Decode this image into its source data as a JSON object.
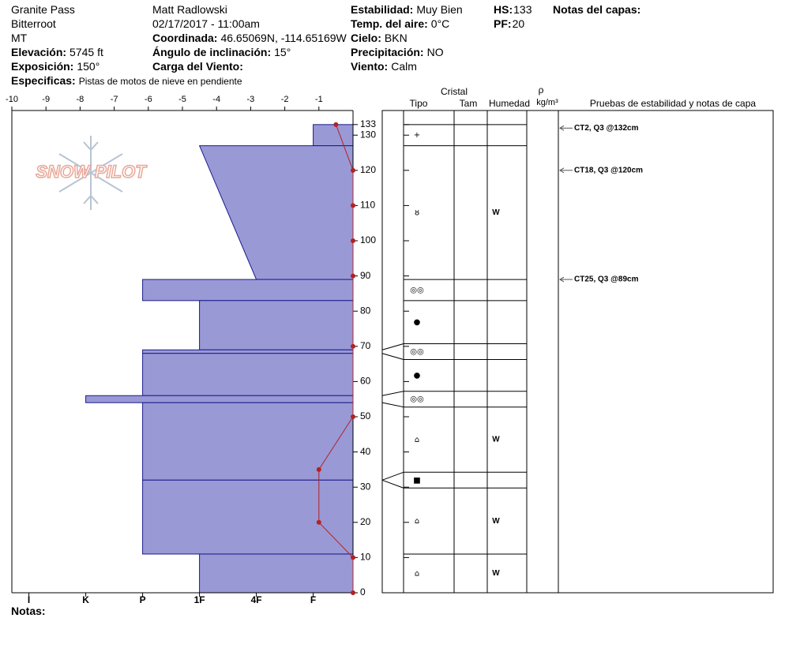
{
  "header": {
    "location": "Granite Pass",
    "range": "Bitterroot",
    "state": "MT",
    "elevation": {
      "label": "Elevación:",
      "value": "5745 ft"
    },
    "aspect": {
      "label": "Exposición:",
      "value": "150°"
    },
    "specifics": {
      "label": "Especificas:",
      "value": "Pistas de motos de nieve en pendiente"
    },
    "observer": "Matt Radlowski",
    "datetime": "02/17/2017 - 11:00am",
    "coordinates": {
      "label": "Coordinada:",
      "value": "46.65069N, -114.65169W"
    },
    "slope_angle": {
      "label": "Ángulo de inclinación:",
      "value": "15°"
    },
    "wind_loading": {
      "label": "Carga del Viento:"
    },
    "stability": {
      "label": "Estabilidad:",
      "value": "Muy Bien"
    },
    "air_temp": {
      "label": "Temp. del aire:",
      "value": "0°C"
    },
    "sky": {
      "label": "Cielo:",
      "value": "BKN"
    },
    "precipitation": {
      "label": "Precipitación:",
      "value": "NO"
    },
    "wind": {
      "label": "Viento:",
      "value": "Calm"
    },
    "hs": {
      "label": "HS:",
      "value": "133"
    },
    "pf": {
      "label": "PF:",
      "value": "20"
    },
    "layer_notes": "Notas del capas:",
    "notes": "Notas:",
    "logo": "SNOW PILOT"
  },
  "chart_data": {
    "type": "snow-profile",
    "ylim": [
      0,
      137
    ],
    "yticks": [
      0,
      10,
      20,
      30,
      40,
      50,
      60,
      70,
      80,
      90,
      100,
      110,
      120,
      130,
      133
    ],
    "xlim": [
      -10,
      0
    ],
    "xticks": [
      -10,
      -9,
      -8,
      -7,
      -6,
      -5,
      -4,
      -3,
      -2,
      -1
    ],
    "hardness_lim": [
      6.3,
      0.3
    ],
    "hardness_ticks": [
      {
        "value": 6,
        "label": "I"
      },
      {
        "value": 5,
        "label": "K"
      },
      {
        "value": 4,
        "label": "P"
      },
      {
        "value": 3,
        "label": "1F"
      },
      {
        "value": 2,
        "label": "4F"
      },
      {
        "value": 1,
        "label": "F"
      }
    ],
    "layer_color": "#9999d6",
    "temperature": {
      "color": "#b22222",
      "depths": [
        133,
        120,
        110,
        100,
        90,
        70,
        50,
        35,
        20,
        10,
        0
      ],
      "values": [
        -0.5,
        0,
        0,
        0,
        0,
        0,
        0,
        -1,
        -1,
        0,
        0
      ]
    },
    "layers": [
      {
        "top": 133,
        "bottom": 127,
        "hardness": 1,
        "grain": "+"
      },
      {
        "top": 127,
        "bottom": 89,
        "hardness": 3,
        "hardness_bottom": 2,
        "grain": "ȣ",
        "moisture": "W"
      },
      {
        "top": 89,
        "bottom": 83,
        "hardness": 4,
        "grain": "◎◎"
      },
      {
        "top": 83,
        "bottom": 69,
        "hardness": 3,
        "grain": "●"
      },
      {
        "top": 69,
        "bottom": 68,
        "hardness": 4,
        "grain": "◎◎"
      },
      {
        "top": 68,
        "bottom": 56,
        "hardness": 4,
        "grain": "●"
      },
      {
        "top": 56,
        "bottom": 54,
        "hardness": 5,
        "grain": "◎◎"
      },
      {
        "top": 54,
        "bottom": 32,
        "hardness": 4,
        "grain": "⌂",
        "moisture": "W"
      },
      {
        "top": 32,
        "bottom": 32,
        "hardness": 6,
        "grain": "■"
      },
      {
        "top": 32,
        "bottom": 11,
        "hardness": 4,
        "grain": "⌂",
        "moisture": "W"
      },
      {
        "top": 11,
        "bottom": 0,
        "hardness": 3,
        "grain": "⌂",
        "moisture": "W"
      }
    ],
    "columns": {
      "crystal": "Cristal",
      "type": "Tipo",
      "size": "Tam",
      "moisture": "Humedad",
      "density": "ρ",
      "density_unit": "kg/m³",
      "tests": "Pruebas de estabilidad y notas de capa"
    },
    "tests": [
      {
        "depth": 132,
        "label": "CT2, Q3 @132cm"
      },
      {
        "depth": 120,
        "label": "CT18, Q3 @120cm"
      },
      {
        "depth": 89,
        "label": "CT25, Q3 @89cm"
      }
    ]
  }
}
